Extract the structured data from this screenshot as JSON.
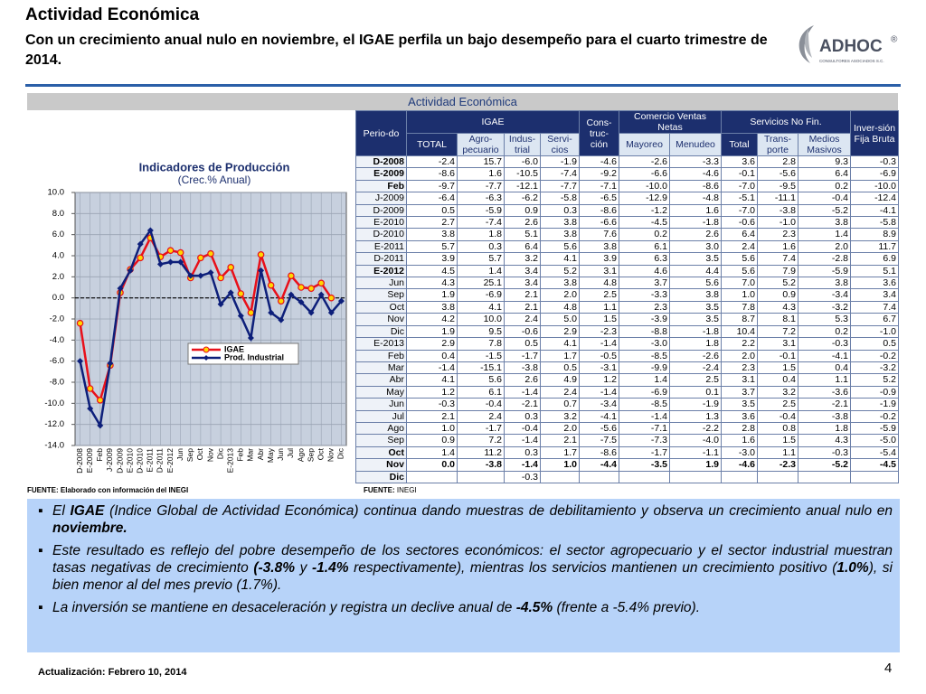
{
  "header": {
    "title": "Actividad Económica",
    "subtitle": "Con un crecimiento anual nulo en noviembre, el IGAE perfila un bajo desempeño para el cuarto trimestre de 2014."
  },
  "logo": {
    "name": "ADHOC",
    "mark": "®",
    "tagline": "CONSULTORES ASOCIADOS S.C."
  },
  "banner": "Actividad Económica",
  "chart_data": {
    "type": "line",
    "title": "Indicadores de Producción",
    "subtitle": "(Crec.% Anual)",
    "categories": [
      "D-2008",
      "E-2009",
      "Feb",
      "J-2009",
      "D-2009",
      "E-2010",
      "D-2010",
      "E-2011",
      "D-2011",
      "E-2012",
      "Jun",
      "Sep",
      "Oct",
      "Nov",
      "Dic",
      "E-2013",
      "Feb",
      "Mar",
      "Abr",
      "May",
      "Jun",
      "Jul",
      "Ago",
      "Sep",
      "Oct",
      "Nov",
      "Dic"
    ],
    "series": [
      {
        "name": "IGAE",
        "color": "#e8101a",
        "marker_fill": "#ffd700",
        "values": [
          -2.4,
          -8.6,
          -9.7,
          -6.4,
          0.5,
          2.7,
          3.8,
          5.7,
          3.9,
          4.5,
          4.3,
          1.9,
          3.8,
          4.2,
          1.9,
          2.9,
          0.4,
          -1.4,
          4.1,
          1.2,
          -0.3,
          2.1,
          1.0,
          0.9,
          1.4,
          0.0,
          null
        ]
      },
      {
        "name": "Prod. Industrial",
        "color": "#0d1f7a",
        "values": [
          -6.0,
          -10.5,
          -12.1,
          -6.2,
          0.9,
          2.6,
          5.1,
          6.4,
          3.2,
          3.4,
          3.4,
          2.1,
          2.1,
          2.4,
          -0.6,
          0.5,
          -1.7,
          -3.8,
          2.6,
          -1.4,
          -2.1,
          0.3,
          -0.4,
          -1.4,
          0.3,
          -1.4,
          -0.3
        ]
      }
    ],
    "ylim": [
      -14,
      10
    ],
    "yticks": [
      {
        "value": -14,
        "label": "-14.0"
      },
      {
        "value": -12,
        "label": "-12.0"
      },
      {
        "value": -10,
        "label": "-10.0"
      },
      {
        "value": -8,
        "label": "-8.0"
      },
      {
        "value": -6,
        "label": "-6.0"
      },
      {
        "value": -4,
        "label": "-4.0"
      },
      {
        "value": -2,
        "label": "-2.0"
      },
      {
        "value": 0,
        "label": "0.0"
      },
      {
        "value": 2,
        "label": "2.0"
      },
      {
        "value": 4,
        "label": "4.0"
      },
      {
        "value": 6,
        "label": "6.0"
      },
      {
        "value": 8,
        "label": "8.0"
      },
      {
        "value": 10,
        "label": "10.0"
      }
    ],
    "grid": true,
    "source": "FUENTE: Elaborado con información del INEGI"
  },
  "table": {
    "header": {
      "period": "Perio-do",
      "igae": "IGAE",
      "total": "TOTAL",
      "agro": "Agro-pecuario",
      "indus": "Indus-trial",
      "servi": "Servi-cios",
      "cons": "Cons-truc-ción",
      "comercio": "Comercio Ventas Netas",
      "mayoreo": "Mayoreo",
      "menudeo": "Menudeo",
      "servnf": "Servicios No Fin.",
      "sntotal": "Total",
      "trans": "Trans-porte",
      "medios": "Medios Masivos",
      "inver": "Inver-sión Fija Bruta"
    },
    "rows": [
      [
        "D-2008",
        "-2.4",
        "15.7",
        "-6.0",
        "-1.9",
        "-4.6",
        "-2.6",
        "-3.3",
        "3.6",
        "2.8",
        "9.3",
        "-0.3"
      ],
      [
        "E-2009",
        "-8.6",
        "1.6",
        "-10.5",
        "-7.4",
        "-9.2",
        "-6.6",
        "-4.6",
        "-0.1",
        "-5.6",
        "6.4",
        "-6.9"
      ],
      [
        "Feb",
        "-9.7",
        "-7.7",
        "-12.1",
        "-7.7",
        "-7.1",
        "-10.0",
        "-8.6",
        "-7.0",
        "-9.5",
        "0.2",
        "-10.0"
      ],
      [
        "J-2009",
        "-6.4",
        "-6.3",
        "-6.2",
        "-5.8",
        "-6.5",
        "-12.9",
        "-4.8",
        "-5.1",
        "-11.1",
        "-0.4",
        "-12.4"
      ],
      [
        "D-2009",
        "0.5",
        "-5.9",
        "0.9",
        "0.3",
        "-8.6",
        "-1.2",
        "1.6",
        "-7.0",
        "-3.8",
        "-5.2",
        "-4.1"
      ],
      [
        "E-2010",
        "2.7",
        "-7.4",
        "2.6",
        "3.8",
        "-6.6",
        "-4.5",
        "-1.8",
        "-0.6",
        "-1.0",
        "3.8",
        "-5.8"
      ],
      [
        "D-2010",
        "3.8",
        "1.8",
        "5.1",
        "3.8",
        "7.6",
        "0.2",
        "2.6",
        "6.4",
        "2.3",
        "1.4",
        "8.9"
      ],
      [
        "E-2011",
        "5.7",
        "0.3",
        "6.4",
        "5.6",
        "3.8",
        "6.1",
        "3.0",
        "2.4",
        "1.6",
        "2.0",
        "11.7"
      ],
      [
        "D-2011",
        "3.9",
        "5.7",
        "3.2",
        "4.1",
        "3.9",
        "6.3",
        "3.5",
        "5.6",
        "7.4",
        "-2.8",
        "6.9"
      ],
      [
        "E-2012",
        "4.5",
        "1.4",
        "3.4",
        "5.2",
        "3.1",
        "4.6",
        "4.4",
        "5.6",
        "7.9",
        "-5.9",
        "5.1"
      ],
      [
        "Jun",
        "4.3",
        "25.1",
        "3.4",
        "3.8",
        "4.8",
        "3.7",
        "5.6",
        "7.0",
        "5.2",
        "3.8",
        "3.6"
      ],
      [
        "Sep",
        "1.9",
        "-6.9",
        "2.1",
        "2.0",
        "2.5",
        "-3.3",
        "3.8",
        "1.0",
        "0.9",
        "-3.4",
        "3.4"
      ],
      [
        "Oct",
        "3.8",
        "4.1",
        "2.1",
        "4.8",
        "1.1",
        "2.3",
        "3.5",
        "7.8",
        "4.3",
        "-3.2",
        "7.4"
      ],
      [
        "Nov",
        "4.2",
        "10.0",
        "2.4",
        "5.0",
        "1.5",
        "-3.9",
        "3.5",
        "8.7",
        "8.1",
        "5.3",
        "6.7"
      ],
      [
        "Dic",
        "1.9",
        "9.5",
        "-0.6",
        "2.9",
        "-2.3",
        "-8.8",
        "-1.8",
        "10.4",
        "7.2",
        "0.2",
        "-1.0"
      ],
      [
        "E-2013",
        "2.9",
        "7.8",
        "0.5",
        "4.1",
        "-1.4",
        "-3.0",
        "1.8",
        "2.2",
        "3.1",
        "-0.3",
        "0.5"
      ],
      [
        "Feb",
        "0.4",
        "-1.5",
        "-1.7",
        "1.7",
        "-0.5",
        "-8.5",
        "-2.6",
        "2.0",
        "-0.1",
        "-4.1",
        "-0.2"
      ],
      [
        "Mar",
        "-1.4",
        "-15.1",
        "-3.8",
        "0.5",
        "-3.1",
        "-9.9",
        "-2.4",
        "2.3",
        "1.5",
        "0.4",
        "-3.2"
      ],
      [
        "Abr",
        "4.1",
        "5.6",
        "2.6",
        "4.9",
        "1.2",
        "1.4",
        "2.5",
        "3.1",
        "0.4",
        "1.1",
        "5.2"
      ],
      [
        "May",
        "1.2",
        "6.1",
        "-1.4",
        "2.4",
        "-1.4",
        "-6.9",
        "0.1",
        "3.7",
        "3.2",
        "-3.6",
        "-0.9"
      ],
      [
        "Jun",
        "-0.3",
        "-0.4",
        "-2.1",
        "0.7",
        "-3.4",
        "-8.5",
        "-1.9",
        "3.5",
        "2.5",
        "-2.1",
        "-1.9"
      ],
      [
        "Jul",
        "2.1",
        "2.4",
        "0.3",
        "3.2",
        "-4.1",
        "-1.4",
        "1.3",
        "3.6",
        "-0.4",
        "-3.8",
        "-0.2"
      ],
      [
        "Ago",
        "1.0",
        "-1.7",
        "-0.4",
        "2.0",
        "-5.6",
        "-7.1",
        "-2.2",
        "2.8",
        "0.8",
        "1.8",
        "-5.9"
      ],
      [
        "Sep",
        "0.9",
        "7.2",
        "-1.4",
        "2.1",
        "-7.5",
        "-7.3",
        "-4.0",
        "1.6",
        "1.5",
        "4.3",
        "-5.0"
      ],
      [
        "Oct",
        "1.4",
        "11.2",
        "0.3",
        "1.7",
        "-8.6",
        "-1.7",
        "-1.1",
        "-3.0",
        "1.1",
        "-0.3",
        "-5.4"
      ],
      [
        "Nov",
        "0.0",
        "-3.8",
        "-1.4",
        "1.0",
        "-4.4",
        "-3.5",
        "1.9",
        "-4.6",
        "-2.3",
        "-5.2",
        "-4.5"
      ],
      [
        "Dic",
        null,
        null,
        "-0.3",
        null,
        null,
        null,
        null,
        null,
        null,
        null,
        null
      ]
    ],
    "source_label": "FUENTE:",
    "source": "INEGI"
  },
  "bullets": [
    [
      {
        "text": "El "
      },
      {
        "text": "IGAE",
        "bold": true
      },
      {
        "text": " (Indice Global de Actividad Económica) continua dando muestras de debilitamiento y observa un crecimiento anual nulo en "
      },
      {
        "text": "noviembre.",
        "bold": true
      }
    ],
    [
      {
        "text": "Este resultado es reflejo del pobre desempeño de los sectores económicos: el sector agropecuario  y el sector industrial muestran tasas negativas de crecimiento "
      },
      {
        "text": "(-3.8%",
        "bold": true
      },
      {
        "text": " y "
      },
      {
        "text": "-1.4%",
        "bold": true
      },
      {
        "text": " respectivamente), mientras los servicios mantienen un crecimiento positivo ("
      },
      {
        "text": "1.0%",
        "bold": true
      },
      {
        "text": "), si bien menor al del mes previo (1.7%)."
      }
    ],
    [
      {
        "text": "La inversión se mantiene en desaceleración y registra un declive anual de "
      },
      {
        "text": "-4.5%",
        "bold": true
      },
      {
        "text": " (frente a -5.4% previo)."
      }
    ]
  ],
  "footer": {
    "update": "Actualización:  Febrero 10, 2014",
    "page": "4"
  }
}
